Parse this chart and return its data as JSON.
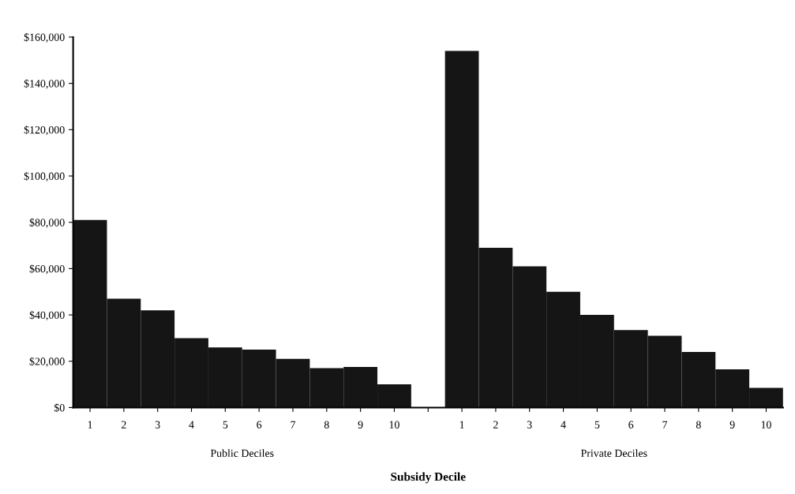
{
  "chart_data": {
    "type": "bar",
    "xlabel": "Subsidy Decile",
    "categories": [
      "1",
      "2",
      "3",
      "4",
      "5",
      "6",
      "7",
      "8",
      "9",
      "10",
      null,
      "1",
      "2",
      "3",
      "4",
      "5",
      "6",
      "7",
      "8",
      "9",
      "10"
    ],
    "values": [
      81000,
      47000,
      42000,
      30000,
      26000,
      25000,
      21000,
      17000,
      17500,
      10000,
      0,
      154000,
      69000,
      61000,
      50000,
      40000,
      33500,
      31000,
      24000,
      16500,
      8500
    ],
    "color": "#151515",
    "ylim": [
      0,
      160000
    ],
    "yticks": [
      {
        "value": 0,
        "label": "$0"
      },
      {
        "value": 20000,
        "label": "$20,000"
      },
      {
        "value": 40000,
        "label": "$40,000"
      },
      {
        "value": 60000,
        "label": "$60,000"
      },
      {
        "value": 80000,
        "label": "$80,000"
      },
      {
        "value": 100000,
        "label": "$100,000"
      },
      {
        "value": 120000,
        "label": "$120,000"
      },
      {
        "value": 140000,
        "label": "$140,000"
      },
      {
        "value": 160000,
        "label": "$160,000"
      }
    ],
    "annotations": [
      "Public Deciles",
      "Private Deciles"
    ],
    "grid": false,
    "legend": false
  }
}
